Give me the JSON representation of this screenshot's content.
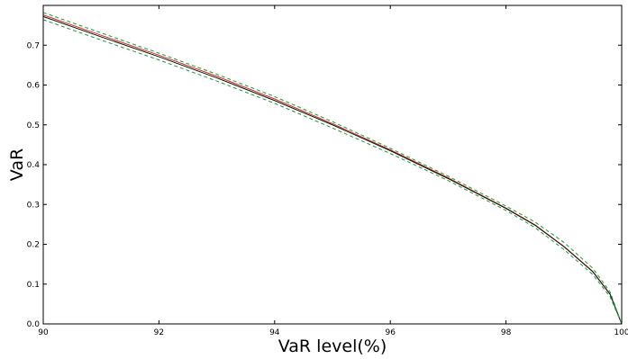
{
  "chart_data": {
    "type": "line",
    "xlabel": "VaR level(%)",
    "ylabel": "VaR",
    "xlim": [
      90,
      100
    ],
    "ylim": [
      0.0,
      0.8
    ],
    "xticks": [
      "90",
      "92",
      "94",
      "96",
      "98",
      "100"
    ],
    "yticks": [
      "0.0",
      "0.1",
      "0.2",
      "0.3",
      "0.4",
      "0.5",
      "0.6",
      "0.7"
    ],
    "grid": false,
    "x": [
      90,
      91,
      92,
      93,
      94,
      95,
      96,
      97,
      98,
      98.5,
      99,
      99.5,
      99.8,
      100
    ],
    "series": [
      {
        "color": "#cc3322",
        "dash": false,
        "values": [
          0.776,
          0.725,
          0.675,
          0.622,
          0.565,
          0.503,
          0.437,
          0.367,
          0.291,
          0.249,
          0.195,
          0.132,
          0.075,
          0.0
        ]
      },
      {
        "color": "#111111",
        "dash": false,
        "values": [
          0.772,
          0.721,
          0.671,
          0.618,
          0.561,
          0.5,
          0.435,
          0.365,
          0.29,
          0.248,
          0.194,
          0.131,
          0.074,
          0.0
        ]
      },
      {
        "color": "#1a9933",
        "dash": true,
        "values": [
          0.782,
          0.731,
          0.68,
          0.627,
          0.571,
          0.508,
          0.441,
          0.371,
          0.296,
          0.256,
          0.205,
          0.14,
          0.08,
          0.0
        ]
      },
      {
        "color": "#1a9933",
        "dash": true,
        "values": [
          0.764,
          0.713,
          0.663,
          0.61,
          0.554,
          0.492,
          0.428,
          0.36,
          0.285,
          0.242,
          0.187,
          0.124,
          0.068,
          0.0
        ]
      }
    ]
  }
}
